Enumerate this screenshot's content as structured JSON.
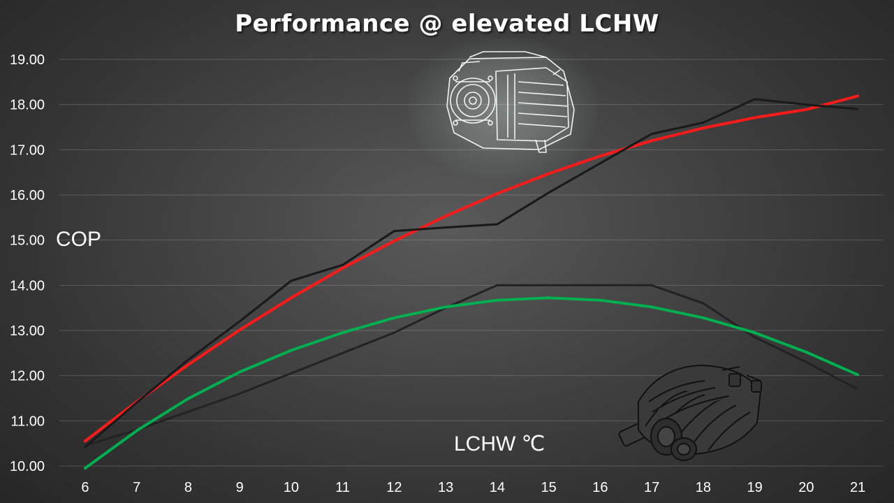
{
  "chart_data": {
    "type": "line",
    "title": "Performance @ elevated LCHW",
    "xlabel": "LCHW ℃",
    "ylabel": "COP",
    "x": [
      6,
      7,
      8,
      9,
      10,
      11,
      12,
      13,
      14,
      15,
      16,
      17,
      18,
      19,
      20,
      21
    ],
    "xlim": [
      5.5,
      21.5
    ],
    "ylim": [
      10,
      19
    ],
    "yticks": [
      "10.00",
      "11.00",
      "12.00",
      "13.00",
      "14.00",
      "15.00",
      "16.00",
      "17.00",
      "18.00",
      "19.00"
    ],
    "grid": true,
    "series": [
      {
        "color": "#e8e8e8",
        "values": [
          10.45,
          10.8,
          11.2,
          11.6,
          12.05,
          12.5,
          12.95,
          13.5,
          14.0,
          14.0,
          14.0,
          14.0,
          13.6,
          12.85,
          12.3,
          11.7
        ]
      },
      {
        "color": "#ff1a1a",
        "values": [
          10.55,
          11.42,
          12.24,
          13.01,
          13.72,
          14.38,
          14.98,
          15.53,
          16.03,
          16.47,
          16.86,
          17.2,
          17.48,
          17.71,
          17.89,
          18.19
        ]
      },
      {
        "color": "#1a1a1a",
        "values": [
          10.42,
          11.4,
          12.35,
          13.2,
          14.1,
          14.45,
          15.2,
          15.28,
          15.35,
          16.05,
          16.7,
          17.35,
          17.6,
          18.12,
          18.0,
          17.9
        ]
      },
      {
        "color": "#00b050",
        "values": [
          9.95,
          10.78,
          11.49,
          12.08,
          12.56,
          12.95,
          13.28,
          13.52,
          13.67,
          13.72,
          13.67,
          13.52,
          13.28,
          12.95,
          12.52,
          12.02
        ]
      }
    ]
  },
  "images": {
    "compressor_icon": "compressor-icon",
    "screw_rotor_icon": "screw-rotor-icon"
  }
}
